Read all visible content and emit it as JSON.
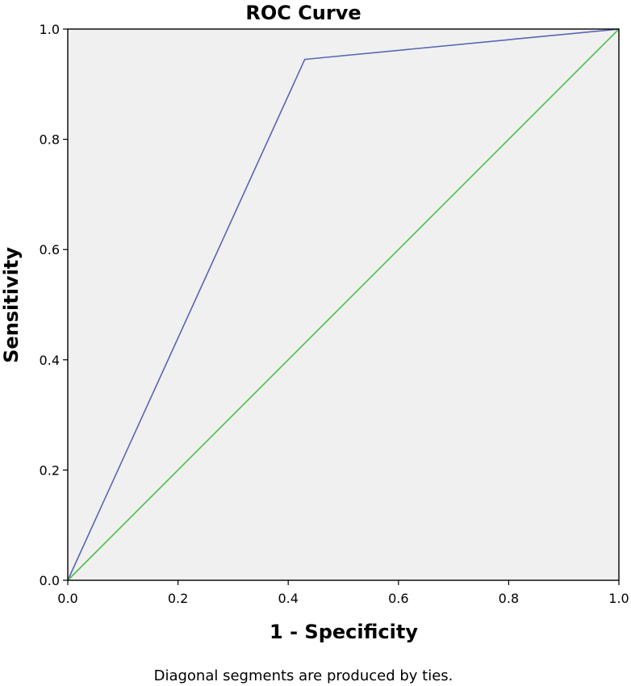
{
  "chart_data": {
    "type": "line",
    "title": "ROC Curve",
    "xlabel": "1 - Specificity",
    "ylabel": "Sensitivity",
    "footnote": "Diagonal segments are produced by ties.",
    "xlim": [
      0,
      1
    ],
    "ylim": [
      0,
      1
    ],
    "xticks": [
      "0.0",
      "0.2",
      "0.4",
      "0.6",
      "0.8",
      "1.0"
    ],
    "yticks": [
      "0.0",
      "0.2",
      "0.4",
      "0.6",
      "0.8",
      "1.0"
    ],
    "grid": false,
    "plot_background": "#f0f0f0",
    "series": [
      {
        "color": "#5a64b4",
        "x": [
          0.0,
          0.43,
          1.0
        ],
        "y": [
          0.0,
          0.945,
          1.0
        ]
      },
      {
        "color": "#4cbe4c",
        "x": [
          0.0,
          1.0
        ],
        "y": [
          0.0,
          1.0
        ]
      }
    ]
  }
}
